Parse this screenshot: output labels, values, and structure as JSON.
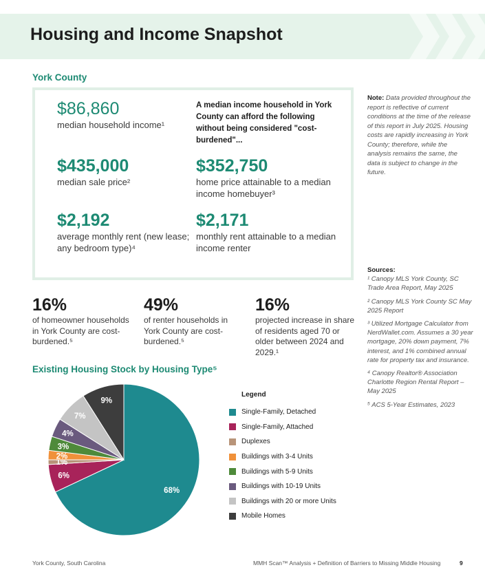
{
  "header": {
    "title": "Housing and Income Snapshot"
  },
  "county": "York County",
  "metrics": {
    "income": {
      "value": "$86,860",
      "label": "median household income¹"
    },
    "afford_heading": "A median income household in York County can afford the following without being considered \"cost-burdened\"...",
    "sale_price": {
      "value": "$435,000",
      "label": "median sale price²"
    },
    "home_attainable": {
      "value": "$352,750",
      "label": "home price attainable to a median income homebuyer³"
    },
    "rent": {
      "value": "$2,192",
      "label": "average monthly rent (new lease; any bedroom type)⁴"
    },
    "rent_attainable": {
      "value": "$2,171",
      "label": "monthly rent attainable to a median income renter"
    }
  },
  "note": {
    "label": "Note:",
    "text": " Data provided throughout the report is reflective of current conditions at the time of the release of this report in July 2025. Housing costs are rapidly increasing in York County; therefore, while the analysis remains the same, the data is subject to change in the future."
  },
  "sources": {
    "title": "Sources:",
    "items": [
      "¹ Canopy MLS York County, SC Trade Area Report, May 2025",
      "² Canopy MLS York County SC May 2025 Report",
      "³ Utilized Mortgage Calculator from NerdWallet.com. Assumes a 30 year mortgage, 20% down payment, 7% interest, and 1% combined annual rate for property tax and insurance.",
      "⁴ Canopy Realtor® Association Charlotte Region Rental Report – May 2025",
      "⁵ ACS 5-Year Estimates, 2023"
    ]
  },
  "stats": [
    {
      "value": "16%",
      "text": "of homeowner households in York County are cost-burdened.⁵"
    },
    {
      "value": "49%",
      "text": "of renter households in York County are cost-burdened.⁵"
    },
    {
      "value": "16%",
      "text": "projected increase in share of residents aged 70 or older between 2024 and 2029.¹"
    }
  ],
  "chart_title": "Existing Housing Stock by Housing Type⁵",
  "chart_data": {
    "type": "pie",
    "title": "Existing Housing Stock by Housing Type⁵",
    "legend_title": "Legend",
    "legend_position": "right",
    "slices": [
      {
        "label": "Single-Family, Detached",
        "value": 68,
        "display": "68%",
        "color": "#1e8a8f"
      },
      {
        "label": "Single-Family, Attached",
        "value": 6,
        "display": "6%",
        "color": "#a8235a"
      },
      {
        "label": "Duplexes",
        "value": 1,
        "display": "1%",
        "color": "#b89479"
      },
      {
        "label": "Buildings with 3-4 Units",
        "value": 2,
        "display": "2%",
        "color": "#f0913a"
      },
      {
        "label": "Buildings with 5-9 Units",
        "value": 3,
        "display": "3%",
        "color": "#4e8a3a"
      },
      {
        "label": "Buildings with 10-19 Units",
        "value": 4,
        "display": "4%",
        "color": "#6a5a7e"
      },
      {
        "label": "Buildings with 20 or more Units",
        "value": 7,
        "display": "7%",
        "color": "#c4c4c4"
      },
      {
        "label": "Mobile Homes",
        "value": 9,
        "display": "9%",
        "color": "#3d3d3d"
      }
    ]
  },
  "footer": {
    "left": "York County, South Carolina",
    "right": "MMH Scan™ Analysis + Definition of Barriers to Missing Middle Housing",
    "page": "9"
  }
}
